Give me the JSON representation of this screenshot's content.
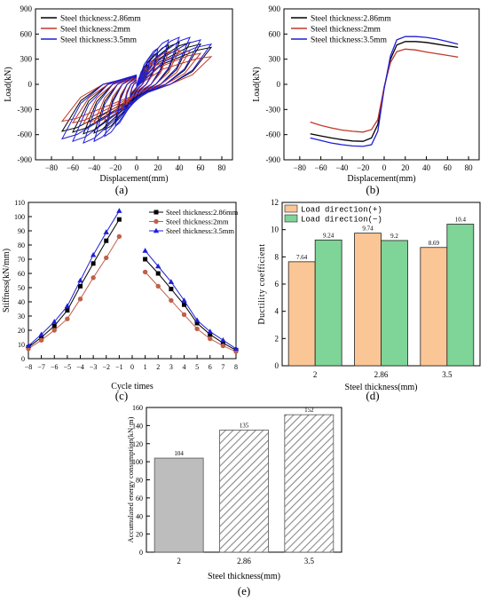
{
  "panels": {
    "a": "(a)",
    "b": "(b)",
    "c": "(c)",
    "d": "(d)",
    "e": "(e)"
  },
  "chart_data": [
    {
      "id": "a",
      "type": "line",
      "caption": "(a)",
      "xlabel": "Displacement(mm)",
      "ylabel": "Load(kN)",
      "xlim": [
        -95,
        90
      ],
      "ylim": [
        -900,
        900
      ],
      "xticks": [
        -80,
        -60,
        -40,
        -20,
        0,
        20,
        40,
        60,
        80
      ],
      "yticks": [
        -900,
        -600,
        -300,
        0,
        300,
        600,
        900
      ],
      "legend_position": "top-left",
      "grid": false,
      "series": [
        {
          "name": "Steel thickness:2.86mm",
          "color": "#000000",
          "amplitudes": [
            6,
            12,
            20,
            30,
            40,
            50,
            60,
            70
          ],
          "peaks": [
            120,
            240,
            380,
            470,
            500,
            500,
            480,
            440
          ],
          "troughs": [
            -130,
            -280,
            -440,
            -540,
            -580,
            -590,
            -570,
            -560
          ]
        },
        {
          "name": "Steel thickness:2mm",
          "color": "#c0392b",
          "amplitudes": [
            6,
            12,
            20,
            30,
            40,
            50,
            60,
            70
          ],
          "peaks": [
            100,
            200,
            320,
            390,
            410,
            400,
            370,
            330
          ],
          "troughs": [
            -110,
            -230,
            -360,
            -430,
            -460,
            -470,
            -460,
            -440
          ]
        },
        {
          "name": "Steel thickness:3.5mm",
          "color": "#1f1fd6",
          "amplitudes": [
            6,
            12,
            20,
            30,
            40,
            50,
            60,
            70
          ],
          "peaks": [
            140,
            270,
            430,
            530,
            560,
            560,
            530,
            480
          ],
          "troughs": [
            -150,
            -320,
            -500,
            -620,
            -680,
            -700,
            -680,
            -650
          ]
        }
      ]
    },
    {
      "id": "b",
      "type": "line",
      "caption": "(b)",
      "xlabel": "Displacement(mm)",
      "ylabel": "Load(kN)",
      "xlim": [
        -95,
        90
      ],
      "ylim": [
        -900,
        900
      ],
      "xticks": [
        -80,
        -60,
        -40,
        -20,
        0,
        20,
        40,
        60,
        80
      ],
      "yticks": [
        -900,
        -600,
        -300,
        0,
        300,
        600,
        900
      ],
      "legend_position": "top-left",
      "grid": false,
      "series": [
        {
          "name": "Steel thickness:2.86mm",
          "color": "#000000",
          "x": [
            -70,
            -60,
            -50,
            -40,
            -30,
            -20,
            -12,
            -6,
            0,
            6,
            12,
            20,
            30,
            40,
            50,
            60,
            70
          ],
          "y": [
            -590,
            -615,
            -640,
            -660,
            -675,
            -680,
            -640,
            -480,
            -40,
            300,
            470,
            510,
            510,
            500,
            480,
            460,
            440
          ]
        },
        {
          "name": "Steel thickness:2mm",
          "color": "#c0392b",
          "x": [
            -70,
            -60,
            -50,
            -40,
            -30,
            -20,
            -12,
            -6,
            0,
            6,
            12,
            20,
            30,
            40,
            50,
            60,
            70
          ],
          "y": [
            -450,
            -490,
            -520,
            -545,
            -560,
            -570,
            -540,
            -420,
            -30,
            260,
            390,
            420,
            410,
            385,
            365,
            345,
            325
          ]
        },
        {
          "name": "Steel thickness:3.5mm",
          "color": "#1f1fd6",
          "x": [
            -70,
            -60,
            -50,
            -40,
            -30,
            -20,
            -12,
            -6,
            0,
            6,
            12,
            20,
            30,
            40,
            50,
            60,
            70
          ],
          "y": [
            -640,
            -670,
            -700,
            -720,
            -735,
            -740,
            -720,
            -560,
            -50,
            340,
            530,
            570,
            570,
            560,
            540,
            510,
            480
          ]
        }
      ]
    },
    {
      "id": "c",
      "type": "line",
      "caption": "(c)",
      "xlabel": "Cycle times",
      "ylabel": "Stiffness(kN/mm)",
      "xlim": [
        -8,
        8
      ],
      "ylim": [
        0,
        110
      ],
      "xticks": [
        -8,
        -7,
        -6,
        -5,
        -4,
        -3,
        -2,
        -1,
        0,
        1,
        2,
        3,
        4,
        5,
        6,
        7,
        8
      ],
      "yticks": [
        0,
        10,
        20,
        30,
        40,
        50,
        60,
        70,
        80,
        90,
        100,
        110
      ],
      "legend_position": "top-right",
      "grid": false,
      "series": [
        {
          "name": "Steel thickness:2.86mm",
          "color": "#000000",
          "marker": "square",
          "neg_x": [
            -8,
            -7,
            -6,
            -5,
            -4,
            -3,
            -2,
            -1
          ],
          "neg_y": [
            8,
            15,
            23,
            34,
            51,
            67,
            83,
            98
          ],
          "pos_x": [
            1,
            2,
            3,
            4,
            5,
            6,
            7,
            8
          ],
          "pos_y": [
            70,
            60,
            49,
            38,
            25,
            17,
            11,
            6
          ]
        },
        {
          "name": "Steel thickness:2mm",
          "color": "#c0604a",
          "marker": "circle",
          "neg_x": [
            -8,
            -7,
            -6,
            -5,
            -4,
            -3,
            -2,
            -1
          ],
          "neg_y": [
            7,
            13,
            20,
            28,
            42,
            57,
            71,
            86
          ],
          "pos_x": [
            1,
            2,
            3,
            4,
            5,
            6,
            7,
            8
          ],
          "pos_y": [
            61,
            51,
            41,
            31,
            21,
            14,
            9,
            5
          ]
        },
        {
          "name": "Steel thickness:3.5mm",
          "color": "#1f1fd6",
          "marker": "triangle",
          "neg_x": [
            -8,
            -7,
            -6,
            -5,
            -4,
            -3,
            -2,
            -1
          ],
          "neg_y": [
            9,
            17,
            26,
            37,
            55,
            73,
            89,
            104
          ],
          "pos_x": [
            1,
            2,
            3,
            4,
            5,
            6,
            7,
            8
          ],
          "pos_y": [
            76,
            65,
            54,
            41,
            27,
            19,
            13,
            7
          ]
        }
      ]
    },
    {
      "id": "d",
      "type": "bar",
      "caption": "(d)",
      "xlabel": "Steel thickness(mm)",
      "ylabel": "Ductility coefficient",
      "ylim": [
        0,
        12
      ],
      "yticks": [
        0,
        2,
        4,
        6,
        8,
        10,
        12
      ],
      "categories": [
        "2",
        "2.86",
        "3.5"
      ],
      "legend_position": "top-left",
      "grid": false,
      "series": [
        {
          "name": "Load direction(+)",
          "color": "#fbc695",
          "values": [
            7.64,
            9.74,
            8.69
          ],
          "labels": [
            "7.64",
            "9.74",
            "8.69"
          ]
        },
        {
          "name": "Load direction(−)",
          "color": "#7fd497",
          "values": [
            9.24,
            9.2,
            10.4
          ],
          "labels": [
            "9.24",
            "9.2",
            "10.4"
          ]
        }
      ]
    },
    {
      "id": "e",
      "type": "bar",
      "caption": "(e)",
      "xlabel": "Steel thickness(mm)",
      "ylabel": "Accumulated energy consumption(kN·m)",
      "ylim": [
        0,
        160
      ],
      "yticks": [
        0,
        20,
        40,
        60,
        80,
        100,
        120,
        140,
        160
      ],
      "categories": [
        "2",
        "2.86",
        "3.5"
      ],
      "grid": false,
      "series": [
        {
          "name": "",
          "values": [
            104,
            135,
            152
          ],
          "labels": [
            "104",
            "135",
            "152"
          ],
          "fills": [
            "solid",
            "hatched",
            "hatched"
          ],
          "color": "#bdbdbd"
        }
      ]
    }
  ]
}
